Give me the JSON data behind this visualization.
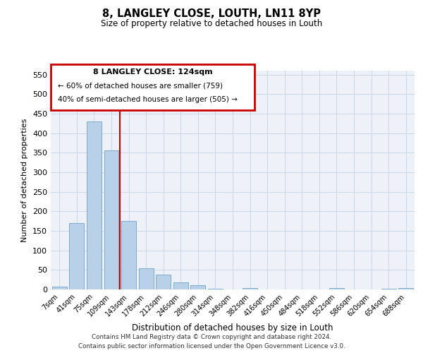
{
  "title1": "8, LANGLEY CLOSE, LOUTH, LN11 8YP",
  "title2": "Size of property relative to detached houses in Louth",
  "xlabel": "Distribution of detached houses by size in Louth",
  "ylabel": "Number of detached properties",
  "categories": [
    "7sqm",
    "41sqm",
    "75sqm",
    "109sqm",
    "143sqm",
    "178sqm",
    "212sqm",
    "246sqm",
    "280sqm",
    "314sqm",
    "348sqm",
    "382sqm",
    "416sqm",
    "450sqm",
    "484sqm",
    "518sqm",
    "552sqm",
    "586sqm",
    "620sqm",
    "654sqm",
    "688sqm"
  ],
  "values": [
    8,
    170,
    430,
    355,
    175,
    55,
    38,
    18,
    10,
    2,
    0,
    3,
    0,
    0,
    0,
    0,
    3,
    0,
    0,
    2,
    3
  ],
  "bar_color": "#b8d0e8",
  "bar_edge_color": "#7aaaca",
  "grid_color": "#ccd8e8",
  "background_color": "#eef2f8",
  "vline_x": 3.5,
  "vline_color": "#cc0000",
  "annotation_text_line1": "8 LANGLEY CLOSE: 124sqm",
  "annotation_text_line2": "← 60% of detached houses are smaller (759)",
  "annotation_text_line3": "40% of semi-detached houses are larger (505) →",
  "annotation_box_color": "#cc0000",
  "footer_line1": "Contains HM Land Registry data © Crown copyright and database right 2024.",
  "footer_line2": "Contains public sector information licensed under the Open Government Licence v3.0.",
  "ylim": [
    0,
    560
  ],
  "yticks": [
    0,
    50,
    100,
    150,
    200,
    250,
    300,
    350,
    400,
    450,
    500,
    550
  ]
}
